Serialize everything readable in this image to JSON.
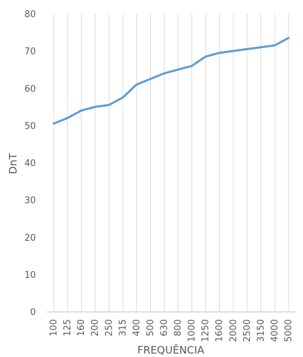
{
  "chart_data": {
    "type": "line",
    "title": "",
    "xlabel": "FREQUÊNCIA",
    "ylabel": "DnT",
    "ylim": [
      0,
      80
    ],
    "yticks": [
      0,
      10,
      20,
      30,
      40,
      50,
      60,
      70,
      80
    ],
    "grid": "vertical",
    "legend": "none",
    "categories": [
      "100",
      "125",
      "160",
      "200",
      "250",
      "315",
      "400",
      "500",
      "630",
      "800",
      "1000",
      "1250",
      "1600",
      "2000",
      "2500",
      "3150",
      "4000",
      "5000"
    ],
    "series": [
      {
        "values": [
          50.5,
          52,
          54,
          55,
          55.5,
          57.5,
          61,
          62.5,
          64,
          65,
          66,
          68.5,
          69.5,
          70,
          70.5,
          71,
          71.5,
          73.5
        ],
        "color": "#5b9bd5"
      }
    ],
    "colors": {
      "grid": "#d9d9d9",
      "axis": "#bfbfbf",
      "text": "#595959"
    }
  }
}
